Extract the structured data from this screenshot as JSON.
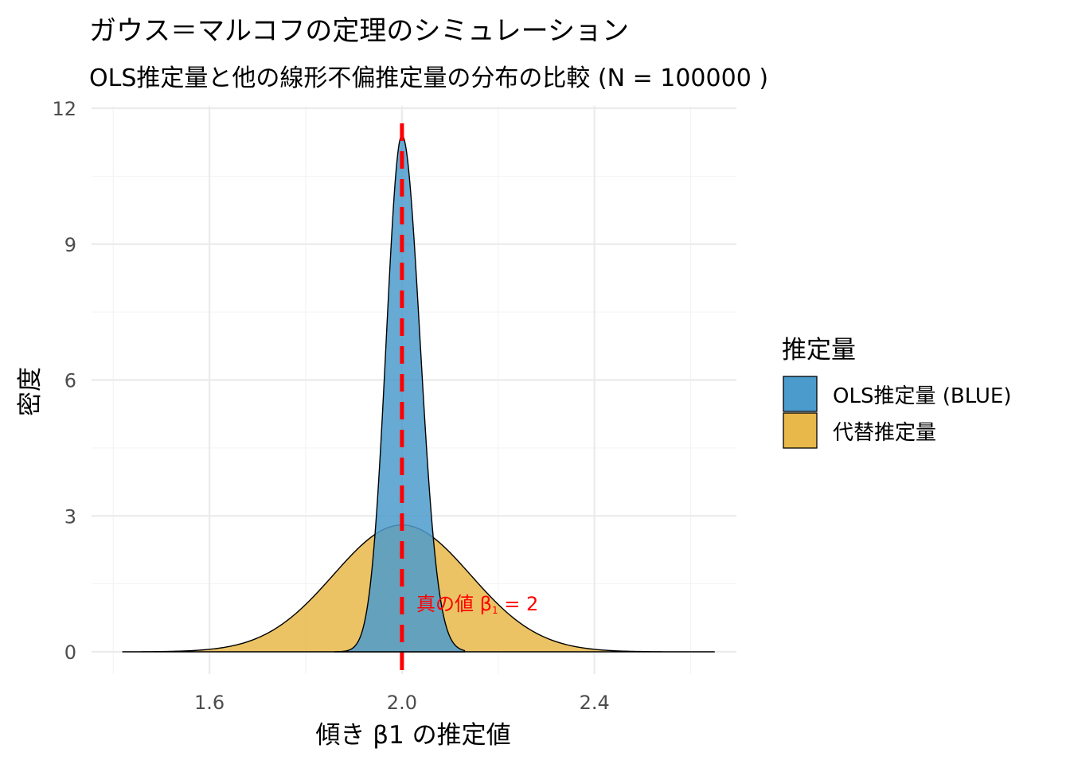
{
  "chart_data": {
    "type": "area",
    "title": "ガウス＝マルコフの定理のシミュレーション",
    "subtitle": "OLS推定量と他の線形不偏推定量の分布の比較 (N = 100000 )",
    "xlabel": "傾き β1 の推定値",
    "ylabel": "密度",
    "xlim": [
      1.4,
      2.65
    ],
    "ylim": [
      0,
      12
    ],
    "x_ticks": [
      "1.6",
      "2.0",
      "2.4"
    ],
    "y_ticks": [
      "0",
      "3",
      "6",
      "9",
      "12"
    ],
    "grid": true,
    "legend": {
      "title": "推定量",
      "position": "right"
    },
    "series": [
      {
        "name": "代替推定量",
        "color": "#E8B84A",
        "mean": 2.0,
        "sd": 0.1425,
        "peak_density": 2.8,
        "x_range": [
          1.42,
          2.65
        ]
      },
      {
        "name": "OLS推定量 (BLUE)",
        "color": "#4C9BCD",
        "mean": 2.0,
        "sd": 0.035,
        "peak_density": 11.4,
        "x_range": [
          1.86,
          2.13
        ]
      }
    ],
    "reference_line": {
      "x": 2.0,
      "color": "#FF0000",
      "style": "dashed"
    },
    "annotation": {
      "text": "真の値 β",
      "subscript": "1",
      "suffix": " = 2",
      "x": 2.03,
      "y": 0.95,
      "color": "#FF0000"
    }
  }
}
